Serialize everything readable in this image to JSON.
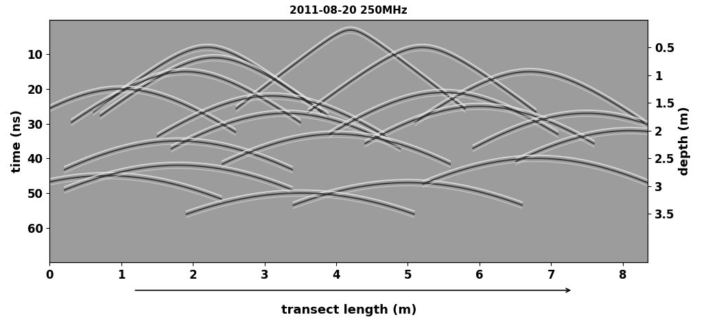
{
  "chart_data": {
    "type": "radargram",
    "title": "2011-08-20 250MHz",
    "x_label": "transect length (m)",
    "y_label": "time (ns)",
    "y2_label": "depth (m)",
    "xlim": [
      0,
      8.35
    ],
    "xticks": [
      0,
      1,
      2,
      3,
      4,
      5,
      6,
      7,
      8
    ],
    "ylim": [
      70,
      0
    ],
    "yticks": [
      10,
      20,
      30,
      40,
      50,
      60
    ],
    "y2lim": [
      4.375,
      0
    ],
    "y2ticks": [
      0.5,
      1,
      1.5,
      2,
      2.5,
      3,
      3.5
    ],
    "reflectors": [
      {
        "x": 4.2,
        "time": 3
      },
      {
        "x": 2.2,
        "time": 8
      },
      {
        "x": 2.3,
        "time": 11
      },
      {
        "x": 5.2,
        "time": 8
      },
      {
        "x": 6.7,
        "time": 15
      },
      {
        "x": 1.9,
        "time": 15
      },
      {
        "x": 1.0,
        "time": 20
      },
      {
        "x": 3.1,
        "time": 22
      },
      {
        "x": 3.3,
        "time": 27
      },
      {
        "x": 5.5,
        "time": 21
      },
      {
        "x": 6.0,
        "time": 25
      },
      {
        "x": 7.5,
        "time": 27
      },
      {
        "x": 8.1,
        "time": 32
      },
      {
        "x": 1.8,
        "time": 35
      },
      {
        "x": 4.0,
        "time": 33
      },
      {
        "x": 0.8,
        "time": 45
      },
      {
        "x": 1.8,
        "time": 42
      },
      {
        "x": 5.0,
        "time": 47
      },
      {
        "x": 6.8,
        "time": 40
      },
      {
        "x": 3.5,
        "time": 50
      }
    ]
  }
}
